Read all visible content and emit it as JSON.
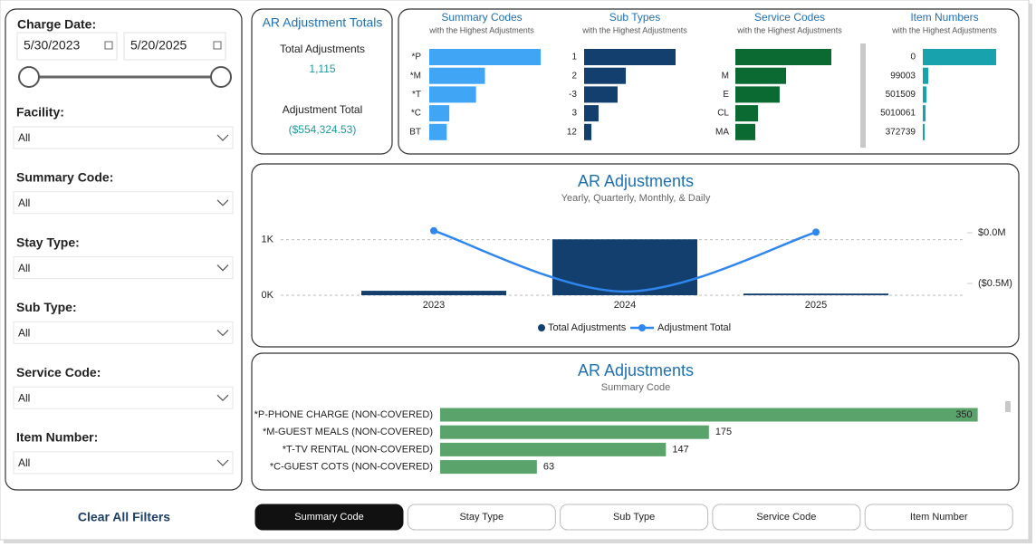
{
  "filters": {
    "date": {
      "label": "Charge Date:",
      "start": "5/30/2023",
      "end": "5/20/2025"
    },
    "dropdowns": [
      {
        "label": "Facility:",
        "value": "All"
      },
      {
        "label": "Summary Code:",
        "value": "All"
      },
      {
        "label": "Stay Type:",
        "value": "All"
      },
      {
        "label": "Sub Type:",
        "value": "All"
      },
      {
        "label": "Service Code:",
        "value": "All"
      },
      {
        "label": "Item Number:",
        "value": "All"
      }
    ],
    "clear": "Clear All Filters"
  },
  "kpi": {
    "title": "AR Adjustment Totals",
    "items": [
      {
        "label": "Total Adjustments",
        "value": "1,115"
      },
      {
        "label": "Adjustment Total",
        "value": "($554,324.53)"
      }
    ]
  },
  "mini_charts": [
    {
      "type": "bar",
      "title": "Summary Codes",
      "subtitle": "with the Highest Adjustments",
      "categories": [
        "*P",
        "*M",
        "*T",
        "*C",
        "BT"
      ],
      "values": [
        350,
        175,
        147,
        63,
        55
      ],
      "color": "#41a5f5"
    },
    {
      "type": "bar",
      "title": "Sub Types",
      "subtitle": "with the Highest Adjustments",
      "categories": [
        "1",
        "2",
        "-3",
        "3",
        "12"
      ],
      "values": [
        500,
        228,
        183,
        79,
        40
      ],
      "color": "#123f6e"
    },
    {
      "type": "bar",
      "title": "Service Codes",
      "subtitle": "with the Highest Adjustments",
      "categories": [
        null,
        "M",
        "E",
        "CL",
        "MA"
      ],
      "values": [
        520,
        275,
        240,
        123,
        108
      ],
      "color": "#0b6a32"
    },
    {
      "type": "bar",
      "title": "Item Numbers",
      "subtitle": "with the Highest Adjustments",
      "categories": [
        "0",
        "99003",
        "501509",
        "5010061",
        "372739"
      ],
      "values": [
        800,
        60,
        40,
        30,
        20
      ],
      "color": "#17a2ae"
    }
  ],
  "combo_chart": {
    "type": "combo",
    "title": "AR Adjustments",
    "subtitle": "Yearly, Quarterly, Monthly, & Daily",
    "categories": [
      "2023",
      "2024",
      "2025"
    ],
    "series": [
      {
        "name": "Total Adjustments",
        "color": "#123f6e",
        "values": [
          80,
          1005,
          30
        ]
      },
      {
        "name": "Adjustment Total",
        "color": "#2f86ee",
        "axis": "y2",
        "values": [
          20000,
          -580000,
          5675.47
        ]
      }
    ],
    "ylim": [
      0,
      1400
    ],
    "yticks": [
      {
        "value": 0,
        "label": "0K"
      },
      {
        "value": 1000,
        "label": "1K"
      }
    ],
    "y2lim": [
      -616000,
      152000
    ],
    "y2ticks": [
      {
        "value": 0,
        "label": "$0.0M"
      },
      {
        "value": -500000,
        "label": "($0.5M)"
      }
    ],
    "grid": true
  },
  "hbar_chart": {
    "type": "hbar",
    "title": "AR Adjustments",
    "subtitle": "Summary Code",
    "categories": [
      "*P-PHONE CHARGE (NON-COVERED)",
      "*M-GUEST MEALS (NON-COVERED)",
      "*T-TV RENTAL (NON-COVERED)",
      "*C-GUEST COTS (NON-COVERED)"
    ],
    "values": [
      350,
      175,
      147,
      63
    ],
    "color": "#5aa46c",
    "xlim": [
      0,
      362
    ]
  },
  "tabs": [
    "Summary Code",
    "Stay Type",
    "Sub Type",
    "Service Code",
    "Item Number"
  ],
  "active_tab": "Summary Code"
}
